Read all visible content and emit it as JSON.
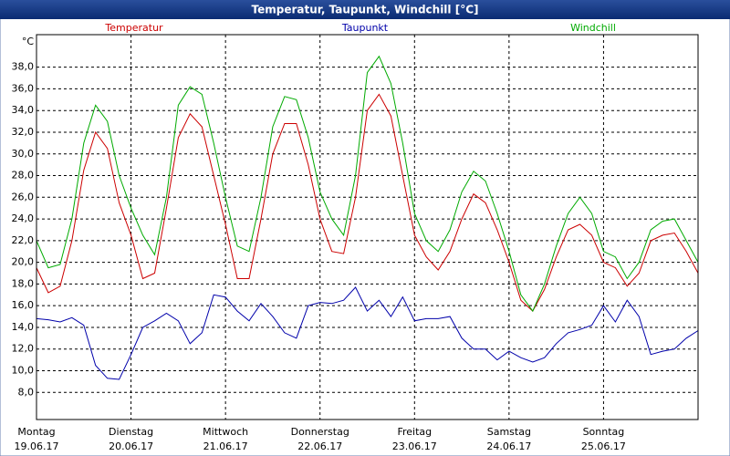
{
  "chart_data": {
    "type": "line",
    "title": "Temperatur, Taupunkt, Windchill [°C]",
    "y_unit": "°C",
    "x": [
      0,
      3,
      6,
      9,
      12,
      15,
      18,
      21,
      24,
      27,
      30,
      33,
      36,
      39,
      42,
      45,
      48,
      51,
      54,
      57,
      60,
      63,
      66,
      69,
      72,
      75,
      78,
      81,
      84,
      87,
      90,
      93,
      96,
      99,
      102,
      105,
      108,
      111,
      114,
      117,
      120,
      123,
      126,
      129,
      132,
      135,
      138,
      141,
      144,
      147,
      150,
      153,
      156,
      159,
      162,
      165,
      168
    ],
    "xlim": [
      0,
      168
    ],
    "xticks": [
      {
        "value": 0,
        "label": "Montag"
      },
      {
        "value": 24,
        "label": "Dienstag"
      },
      {
        "value": 48,
        "label": "Mittwoch"
      },
      {
        "value": 72,
        "label": "Donnerstag"
      },
      {
        "value": 96,
        "label": "Freitag"
      },
      {
        "value": 120,
        "label": "Samstag"
      },
      {
        "value": 144,
        "label": "Sonntag"
      }
    ],
    "xtick_dates": [
      "19.06.17",
      "20.06.17",
      "21.06.17",
      "22.06.17",
      "23.06.17",
      "24.06.17",
      "25.06.17"
    ],
    "ylim": [
      5.5,
      41
    ],
    "yticks": [
      {
        "value": 8,
        "label": "8,0"
      },
      {
        "value": 10,
        "label": "10,0"
      },
      {
        "value": 12,
        "label": "12,0"
      },
      {
        "value": 14,
        "label": "14,0"
      },
      {
        "value": 16,
        "label": "16,0"
      },
      {
        "value": 18,
        "label": "18,0"
      },
      {
        "value": 20,
        "label": "20,0"
      },
      {
        "value": 22,
        "label": "22,0"
      },
      {
        "value": 24,
        "label": "24,0"
      },
      {
        "value": 26,
        "label": "26,0"
      },
      {
        "value": 28,
        "label": "28,0"
      },
      {
        "value": 30,
        "label": "30,0"
      },
      {
        "value": 32,
        "label": "32,0"
      },
      {
        "value": 34,
        "label": "34,0"
      },
      {
        "value": 36,
        "label": "36,0"
      },
      {
        "value": 38,
        "label": "38,0"
      }
    ],
    "grid": true,
    "series": [
      {
        "name": "Temperatur",
        "color": "#cc0000",
        "values": [
          19.5,
          17.2,
          17.8,
          22,
          28.5,
          32,
          30.5,
          25.5,
          22.5,
          18.5,
          19,
          25,
          31.5,
          33.7,
          32.5,
          28,
          23.5,
          18.5,
          18.5,
          24,
          30,
          32.8,
          32.8,
          29,
          24,
          21,
          20.8,
          26,
          34,
          35.5,
          33.5,
          28,
          22.5,
          20.5,
          19.3,
          21,
          24,
          26.3,
          25.5,
          23,
          20,
          16.5,
          15.5,
          17.5,
          20.5,
          23,
          23.5,
          22.5,
          20,
          19.5,
          17.8,
          19,
          22,
          22.5,
          22.7,
          21,
          19
        ]
      },
      {
        "name": "Taupunkt",
        "color": "#0000aa",
        "values": [
          14.8,
          14.7,
          14.5,
          14.9,
          14.2,
          10.5,
          9.3,
          9.2,
          11.5,
          14,
          14.6,
          15.3,
          14.6,
          12.5,
          13.5,
          17,
          16.8,
          15.5,
          14.6,
          16.2,
          15,
          13.5,
          13,
          16,
          16.3,
          16.2,
          16.5,
          17.7,
          15.5,
          16.5,
          15,
          16.8,
          14.6,
          14.8,
          14.8,
          15,
          13,
          12,
          12,
          11,
          11.8,
          11.2,
          10.8,
          11.2,
          12.5,
          13.5,
          13.8,
          14.2,
          16,
          14.5,
          16.5,
          15,
          11.5,
          11.8,
          12,
          13,
          13.7
        ]
      },
      {
        "name": "Windchill",
        "color": "#00aa00",
        "values": [
          22,
          19.5,
          19.8,
          24,
          31,
          34.5,
          33,
          28,
          25,
          22.5,
          20.7,
          26,
          34.5,
          36.2,
          35.5,
          31,
          26,
          21.5,
          21,
          26,
          32.5,
          35.3,
          35,
          31.5,
          26.5,
          24,
          22.5,
          28,
          37.5,
          39,
          36.5,
          31,
          24.5,
          22,
          21,
          23,
          26.5,
          28.4,
          27.5,
          24.5,
          21,
          17,
          15.5,
          18,
          21.5,
          24.5,
          26,
          24.5,
          21,
          20.5,
          18.5,
          20,
          23,
          23.8,
          24,
          22,
          20
        ]
      }
    ]
  }
}
